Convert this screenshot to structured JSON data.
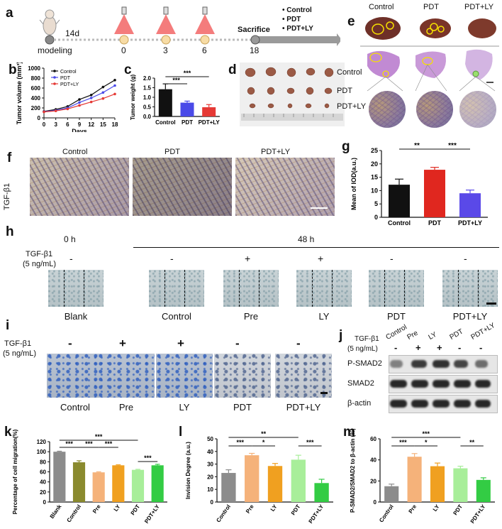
{
  "panels": {
    "a": "a",
    "b": "b",
    "c": "c",
    "d": "d",
    "e": "e",
    "f": "f",
    "g": "g",
    "h": "h",
    "i": "i",
    "j": "j",
    "k": "k",
    "l": "l",
    "m": "m"
  },
  "timeline": {
    "modeling": "modeling",
    "interval": "14d",
    "t0": "0",
    "t3": "3",
    "t6": "6",
    "sacrifice": "Sacrifice",
    "t18": "18",
    "legend": [
      "Control",
      "PDT",
      "PDT+LY"
    ]
  },
  "tumor_labels": {
    "control": "Control",
    "pdt": "PDT",
    "pdt_ly": "PDT+LY"
  },
  "panel_e": {
    "control": "Control",
    "pdt": "PDT",
    "pdt_ly": "PDT+LY"
  },
  "panel_f": {
    "control": "Control",
    "pdt": "PDT",
    "pdt_ly": "PDT+LY",
    "side": "TGF-β1"
  },
  "panel_h": {
    "treat": "TGF-β1",
    "conc": "(5 ng/mL)",
    "time0": "0 h",
    "time48": "48 h",
    "signs": [
      "-",
      "-",
      "+",
      "+",
      "-",
      "-"
    ],
    "labels": [
      "Blank",
      "Control",
      "Pre",
      "LY",
      "PDT",
      "PDT+LY"
    ]
  },
  "panel_i": {
    "treat": "TGF-β1",
    "conc": "(5 ng/mL)",
    "signs": [
      "-",
      "+",
      "+",
      "-",
      "-"
    ],
    "labels": [
      "Control",
      "Pre",
      "LY",
      "PDT",
      "PDT+LY"
    ]
  },
  "panel_j": {
    "treat": "TGF-β1",
    "conc": "(5 ng/mL)",
    "lanes": [
      "Control",
      "Pre",
      "LY",
      "PDT",
      "PDT+LY"
    ],
    "signs": [
      "-",
      "+",
      "+",
      "-",
      "-"
    ],
    "rows": [
      "P-SMAD2",
      "SMAD2",
      "β-actin"
    ]
  },
  "chart_data": [
    {
      "id": "b",
      "type": "line",
      "xlabel": "Days",
      "ylabel": "Tumor volume (mm³)",
      "x": [
        0,
        3,
        6,
        9,
        12,
        15,
        18
      ],
      "ylim": [
        0,
        1000
      ],
      "yticks": [
        0,
        200,
        400,
        600,
        800,
        1000
      ],
      "series": [
        {
          "name": "Control",
          "color": "#111111",
          "values": [
            130,
            170,
            230,
            370,
            460,
            620,
            760
          ]
        },
        {
          "name": "PDT",
          "color": "#4a4ae8",
          "values": [
            125,
            150,
            200,
            310,
            400,
            510,
            650
          ]
        },
        {
          "name": "PDT+LY",
          "color": "#e53935",
          "values": [
            120,
            140,
            180,
            250,
            320,
            390,
            480
          ]
        }
      ]
    },
    {
      "id": "c",
      "type": "bar",
      "ylabel": "Tumor weight (g)",
      "categories": [
        "Control",
        "PDT",
        "PDT+LY"
      ],
      "values": [
        1.42,
        0.72,
        0.48
      ],
      "errors": [
        0.28,
        0.08,
        0.14
      ],
      "colors": [
        "#111111",
        "#4a4ae8",
        "#e53935"
      ],
      "ylim": [
        0,
        2.0
      ],
      "yticks": [
        "0.0",
        "0.5",
        "1.0",
        "1.5",
        "2.0"
      ],
      "sig": [
        {
          "from": 0,
          "to": 2,
          "label": "***"
        },
        {
          "from": 0,
          "to": 1,
          "label": "***"
        }
      ]
    },
    {
      "id": "g",
      "type": "bar",
      "ylabel": "Mean of IOD(a.u.)",
      "categories": [
        "Control",
        "PDT",
        "PDT+LY"
      ],
      "values": [
        12.2,
        17.8,
        9.0
      ],
      "errors": [
        2.1,
        0.9,
        1.2
      ],
      "colors": [
        "#111111",
        "#e0271f",
        "#5a49e8"
      ],
      "ylim": [
        0,
        25
      ],
      "yticks": [
        "0",
        "5",
        "10",
        "15",
        "20",
        "25"
      ],
      "sig": [
        {
          "from": 0,
          "to": 1,
          "label": "**"
        },
        {
          "from": 1,
          "to": 2,
          "label": "***"
        }
      ]
    },
    {
      "id": "k",
      "type": "bar",
      "ylabel": "Percentage of cell migration(%)",
      "categories": [
        "Blank",
        "Control",
        "Pre",
        "LY",
        "PDT",
        "PDT+LY"
      ],
      "values": [
        100,
        79,
        59,
        73,
        64,
        73
      ],
      "errors": [
        1,
        3,
        1,
        1,
        1,
        2
      ],
      "colors": [
        "#8c8c8c",
        "#8a8a2e",
        "#f5b27a",
        "#f0a020",
        "#a8ee9a",
        "#33cc44"
      ],
      "ylim": [
        0,
        120
      ],
      "yticks": [
        "0",
        "20",
        "40",
        "60",
        "80",
        "100",
        "120"
      ],
      "sig": [
        {
          "from": 0,
          "to": 1,
          "label": "***"
        },
        {
          "from": 1,
          "to": 2,
          "label": "***"
        },
        {
          "from": 2,
          "to": 3,
          "label": "***"
        },
        {
          "from": 4,
          "to": 5,
          "label": "***"
        },
        {
          "from": 0,
          "to": 4,
          "label": "***"
        }
      ]
    },
    {
      "id": "l",
      "type": "bar",
      "ylabel": "Invision Degree (a.u.)",
      "categories": [
        "Control",
        "Pre",
        "LY",
        "PDT",
        "PDT+LY"
      ],
      "values": [
        23,
        37,
        28.5,
        33.5,
        15
      ],
      "errors": [
        2.5,
        1.5,
        2,
        3.5,
        3
      ],
      "colors": [
        "#8c8c8c",
        "#f5b27a",
        "#f0a020",
        "#a8ee9a",
        "#33cc44"
      ],
      "ylim": [
        0,
        50
      ],
      "yticks": [
        "0",
        "10",
        "20",
        "30",
        "40",
        "50"
      ],
      "sig": [
        {
          "from": 0,
          "to": 1,
          "label": "***"
        },
        {
          "from": 1,
          "to": 2,
          "label": "*"
        },
        {
          "from": 3,
          "to": 4,
          "label": "***"
        },
        {
          "from": 0,
          "to": 3,
          "label": "**"
        }
      ]
    },
    {
      "id": "m",
      "type": "bar",
      "ylabel": "P-SMAD2/SMAD2 to β-actin (%)",
      "categories": [
        "Control",
        "Pre",
        "LY",
        "PDT",
        "PDT+LY"
      ],
      "values": [
        15,
        43,
        34,
        32,
        21
      ],
      "errors": [
        2,
        3,
        3,
        2,
        2
      ],
      "colors": [
        "#8c8c8c",
        "#f5b27a",
        "#f0a020",
        "#a8ee9a",
        "#33cc44"
      ],
      "ylim": [
        0,
        60
      ],
      "yticks": [
        "0",
        "20",
        "40",
        "60"
      ],
      "sig": [
        {
          "from": 0,
          "to": 1,
          "label": "***"
        },
        {
          "from": 1,
          "to": 2,
          "label": "*"
        },
        {
          "from": 3,
          "to": 4,
          "label": "**"
        },
        {
          "from": 0,
          "to": 3,
          "label": "***"
        }
      ]
    }
  ]
}
